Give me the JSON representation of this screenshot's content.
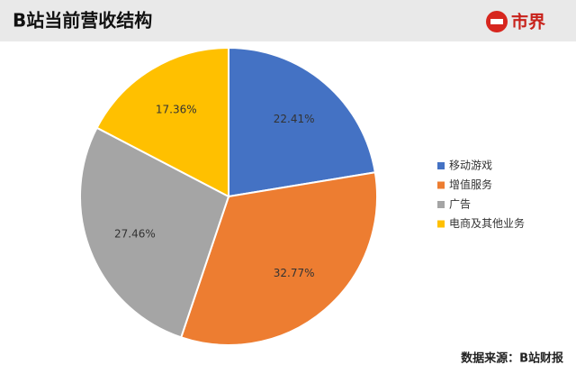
{
  "chart_data": {
    "type": "pie",
    "title": "B站当前营收结构",
    "logo": "市界",
    "source": "数据来源：B站财报",
    "categories": [
      "移动游戏",
      "增值服务",
      "广告",
      "电商及其他业务"
    ],
    "values": [
      22.41,
      32.77,
      27.46,
      17.36
    ],
    "value_labels": [
      "22.41%",
      "32.77%",
      "27.46%",
      "17.36%"
    ],
    "colors": [
      "#4472c4",
      "#ed7d31",
      "#a5a5a5",
      "#ffc000"
    ],
    "legend": "right"
  }
}
